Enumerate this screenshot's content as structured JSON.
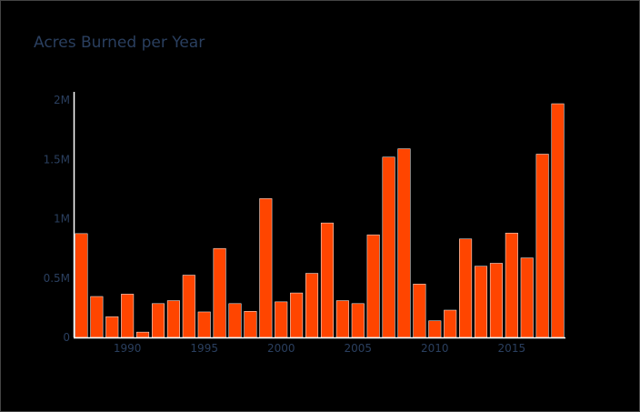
{
  "chart_data": {
    "type": "bar",
    "title": "Acres Burned per Year",
    "xlabel": "",
    "ylabel": "",
    "x": [
      1987,
      1988,
      1989,
      1990,
      1991,
      1992,
      1993,
      1994,
      1995,
      1996,
      1997,
      1998,
      1999,
      2000,
      2001,
      2002,
      2003,
      2004,
      2005,
      2006,
      2007,
      2008,
      2009,
      2010,
      2011,
      2012,
      2013,
      2014,
      2015,
      2016,
      2017,
      2018
    ],
    "values": [
      875000,
      345000,
      175000,
      365000,
      45000,
      285000,
      310000,
      525000,
      215000,
      750000,
      285000,
      220000,
      1170000,
      300000,
      375000,
      540000,
      965000,
      310000,
      285000,
      865000,
      1520000,
      1590000,
      450000,
      140000,
      230000,
      830000,
      600000,
      625000,
      880000,
      670000,
      1545000,
      1970000
    ],
    "xlim": [
      1986.5,
      2018.5
    ],
    "ylim": [
      0,
      2070000
    ],
    "x_ticks": [
      1990,
      1995,
      2000,
      2005,
      2010,
      2015
    ],
    "x_tick_labels": [
      "1990",
      "1995",
      "2000",
      "2005",
      "2010",
      "2015"
    ],
    "y_ticks": [
      0,
      500000,
      1000000,
      1500000,
      2000000
    ],
    "y_tick_labels": [
      "0",
      "0.5M",
      "1M",
      "1.5M",
      "2M"
    ],
    "grid": false,
    "colors": {
      "bar_fill": "#ff4500",
      "bar_outline": "#ffffff",
      "axis_line": "#ffffff",
      "tick_text": "#2a3f5f",
      "title_text": "#2a3f5f",
      "background": "#000000"
    }
  }
}
